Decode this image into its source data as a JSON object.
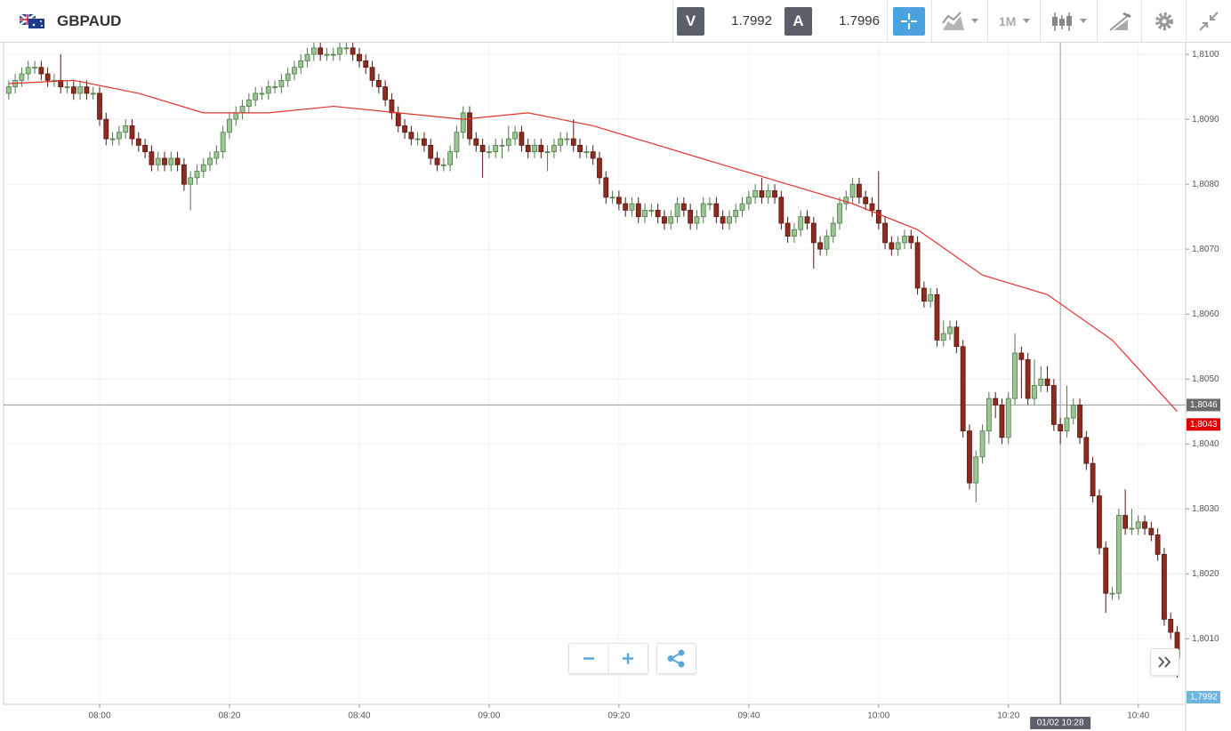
{
  "header": {
    "symbol": "GBPAUD",
    "bid_label": "V",
    "bid": "1.7992",
    "ask_label": "A",
    "ask": "1.7996",
    "timeframe": "1M"
  },
  "chart_data": {
    "type": "candlestick",
    "x": [
      466,
      467,
      468,
      469,
      470,
      471,
      472,
      473,
      474,
      475,
      476,
      477,
      478,
      479,
      480,
      481,
      482,
      483,
      484,
      485,
      486,
      487,
      488,
      489,
      490,
      491,
      492,
      493,
      494,
      495,
      496,
      497,
      498,
      499,
      500,
      501,
      502,
      503,
      504,
      505,
      506,
      507,
      508,
      509,
      510,
      511,
      512,
      513,
      514,
      515,
      516,
      517,
      518,
      519,
      520,
      521,
      522,
      523,
      524,
      525,
      526,
      527,
      528,
      529,
      530,
      531,
      532,
      533,
      534,
      535,
      536,
      537,
      538,
      539,
      540,
      541,
      542,
      543,
      544,
      545,
      546,
      547,
      548,
      549,
      550,
      551,
      552,
      553,
      554,
      555,
      556,
      557,
      558,
      559,
      560,
      561,
      562,
      563,
      564,
      565,
      566,
      567,
      568,
      569,
      570,
      571,
      572,
      573,
      574,
      575,
      576,
      577,
      578,
      579,
      580,
      581,
      582,
      583,
      584,
      585,
      586,
      587,
      588,
      589,
      590,
      591,
      592,
      593,
      594,
      595,
      596,
      597,
      598,
      599,
      600,
      601,
      602,
      603,
      604,
      605,
      606,
      607,
      608,
      609,
      610,
      611,
      612,
      613,
      614,
      615,
      616,
      617,
      618,
      619,
      620,
      621,
      622,
      623,
      624,
      625,
      626,
      627,
      628,
      629,
      630,
      631,
      632,
      633,
      634,
      635,
      636,
      637,
      638,
      639,
      640,
      641,
      642,
      643,
      644,
      645,
      646
    ],
    "open": [
      1.8094,
      1.8095,
      1.8096,
      1.8097,
      1.8098,
      1.8098,
      1.8097,
      1.8096,
      1.8096,
      1.8095,
      1.8095,
      1.8094,
      1.8095,
      1.8094,
      1.8094,
      1.809,
      1.8087,
      1.8087,
      1.8088,
      1.8089,
      1.8087,
      1.8086,
      1.8085,
      1.8083,
      1.8084,
      1.8083,
      1.8084,
      1.8083,
      1.808,
      1.8081,
      1.8082,
      1.8083,
      1.8084,
      1.8085,
      1.8088,
      1.809,
      1.8091,
      1.8092,
      1.8093,
      1.8094,
      1.8094,
      1.8095,
      1.8095,
      1.8096,
      1.8097,
      1.8098,
      1.8099,
      1.81,
      1.8101,
      1.81,
      1.81,
      1.81,
      1.8101,
      1.8101,
      1.81,
      1.8099,
      1.8098,
      1.8096,
      1.8095,
      1.8093,
      1.8091,
      1.8089,
      1.8088,
      1.8087,
      1.8087,
      1.8086,
      1.8084,
      1.8083,
      1.8083,
      1.8085,
      1.8088,
      1.8091,
      1.8087,
      1.8086,
      1.8085,
      1.8085,
      1.8086,
      1.8086,
      1.8087,
      1.8088,
      1.8086,
      1.8085,
      1.8086,
      1.8085,
      1.8085,
      1.8086,
      1.8087,
      1.8087,
      1.8086,
      1.8085,
      1.8085,
      1.8084,
      1.8081,
      1.8078,
      1.8078,
      1.8077,
      1.8076,
      1.8077,
      1.8075,
      1.8076,
      1.8076,
      1.8075,
      1.8074,
      1.8075,
      1.8077,
      1.8076,
      1.8074,
      1.8075,
      1.8077,
      1.8077,
      1.8075,
      1.8074,
      1.8075,
      1.8076,
      1.8077,
      1.8078,
      1.8079,
      1.8078,
      1.8079,
      1.8078,
      1.8074,
      1.8072,
      1.8073,
      1.8075,
      1.8074,
      1.8071,
      1.807,
      1.8072,
      1.8074,
      1.8077,
      1.8078,
      1.808,
      1.8078,
      1.8077,
      1.8076,
      1.8074,
      1.8071,
      1.807,
      1.8071,
      1.8072,
      1.8071,
      1.8064,
      1.8062,
      1.8063,
      1.8056,
      1.8057,
      1.8058,
      1.8055,
      1.8042,
      1.8034,
      1.8038,
      1.8042,
      1.8047,
      1.8046,
      1.8041,
      1.8047,
      1.8054,
      1.8053,
      1.8047,
      1.8049,
      1.805,
      1.8049,
      1.8043,
      1.8042,
      1.8044,
      1.8046,
      1.8041,
      1.8037,
      1.8032,
      1.8024,
      1.8017,
      1.8017,
      1.8029,
      1.8027,
      1.8027,
      1.8028,
      1.8027,
      1.8026,
      1.8023,
      1.8013,
      1.8011
    ],
    "high": [
      1.8096,
      1.8097,
      1.8098,
      1.8099,
      1.8099,
      1.8099,
      1.8098,
      1.8097,
      1.81,
      1.8096,
      1.8096,
      1.8096,
      1.8096,
      1.8095,
      1.8095,
      1.8091,
      1.8088,
      1.8089,
      1.809,
      1.809,
      1.8088,
      1.8087,
      1.8086,
      1.8085,
      1.8085,
      1.8085,
      1.8085,
      1.8084,
      1.8082,
      1.8083,
      1.8084,
      1.8085,
      1.8086,
      1.8089,
      1.8091,
      1.8092,
      1.8093,
      1.8094,
      1.8095,
      1.8095,
      1.8096,
      1.8096,
      1.8097,
      1.8098,
      1.8099,
      1.81,
      1.8101,
      1.8102,
      1.8102,
      1.8101,
      1.8101,
      1.8102,
      1.8102,
      1.8102,
      1.8101,
      1.81,
      1.8099,
      1.8097,
      1.8096,
      1.8094,
      1.8092,
      1.809,
      1.8089,
      1.8088,
      1.8088,
      1.8087,
      1.8085,
      1.8084,
      1.8086,
      1.8089,
      1.8092,
      1.8092,
      1.8088,
      1.8087,
      1.8086,
      1.8087,
      1.8087,
      1.8089,
      1.8089,
      1.8089,
      1.8087,
      1.8087,
      1.8087,
      1.8086,
      1.8087,
      1.8088,
      1.8088,
      1.809,
      1.8087,
      1.8086,
      1.8086,
      1.8085,
      1.8082,
      1.8079,
      1.8079,
      1.8078,
      1.8078,
      1.8078,
      1.8077,
      1.8077,
      1.8077,
      1.8076,
      1.8076,
      1.8078,
      1.8078,
      1.8077,
      1.8076,
      1.8078,
      1.8078,
      1.8078,
      1.8076,
      1.8076,
      1.8077,
      1.8078,
      1.8079,
      1.808,
      1.8081,
      1.808,
      1.808,
      1.8079,
      1.8075,
      1.8074,
      1.8076,
      1.8076,
      1.8075,
      1.8072,
      1.8073,
      1.8075,
      1.8078,
      1.8079,
      1.8081,
      1.8081,
      1.8079,
      1.8078,
      1.8082,
      1.8075,
      1.8072,
      1.8072,
      1.8073,
      1.8073,
      1.8072,
      1.8065,
      1.8064,
      1.8064,
      1.8059,
      1.8059,
      1.8059,
      1.8056,
      1.8043,
      1.8039,
      1.8043,
      1.8048,
      1.8048,
      1.8047,
      1.8048,
      1.8057,
      1.8055,
      1.8054,
      1.8053,
      1.8052,
      1.8052,
      1.805,
      1.8044,
      1.8049,
      1.8047,
      1.8047,
      1.8042,
      1.8038,
      1.8033,
      1.8025,
      1.8018,
      1.803,
      1.8033,
      1.803,
      1.8029,
      1.8029,
      1.8028,
      1.8027,
      1.8024,
      1.8014,
      1.8012
    ],
    "low": [
      1.8093,
      1.8094,
      1.8095,
      1.8096,
      1.8097,
      1.8096,
      1.8095,
      1.8095,
      1.8094,
      1.8094,
      1.8093,
      1.8093,
      1.8093,
      1.8093,
      1.8089,
      1.8086,
      1.8086,
      1.8086,
      1.8087,
      1.8086,
      1.8085,
      1.8084,
      1.8082,
      1.8082,
      1.8082,
      1.8082,
      1.8082,
      1.8079,
      1.8076,
      1.808,
      1.8081,
      1.8082,
      1.8083,
      1.8084,
      1.8087,
      1.8089,
      1.809,
      1.8091,
      1.8092,
      1.8093,
      1.8093,
      1.8094,
      1.8094,
      1.8095,
      1.8096,
      1.8097,
      1.8098,
      1.8099,
      1.8099,
      1.8099,
      1.8099,
      1.8099,
      1.81,
      1.8099,
      1.8098,
      1.8097,
      1.8095,
      1.8094,
      1.8092,
      1.809,
      1.8088,
      1.8087,
      1.8086,
      1.8086,
      1.8085,
      1.8083,
      1.8082,
      1.8082,
      1.8082,
      1.8084,
      1.8087,
      1.8086,
      1.8085,
      1.8081,
      1.8084,
      1.8084,
      1.8084,
      1.8085,
      1.8086,
      1.8085,
      1.8084,
      1.8084,
      1.8084,
      1.8082,
      1.8084,
      1.8085,
      1.8086,
      1.8085,
      1.8084,
      1.8084,
      1.8083,
      1.808,
      1.8077,
      1.8077,
      1.8076,
      1.8075,
      1.8075,
      1.8074,
      1.8074,
      1.8075,
      1.8074,
      1.8073,
      1.8073,
      1.8074,
      1.8075,
      1.8073,
      1.8073,
      1.8074,
      1.8076,
      1.8074,
      1.8073,
      1.8073,
      1.8074,
      1.8075,
      1.8076,
      1.8077,
      1.8077,
      1.8077,
      1.8077,
      1.8073,
      1.8071,
      1.8071,
      1.8072,
      1.8073,
      1.8067,
      1.8069,
      1.8069,
      1.8071,
      1.8073,
      1.8076,
      1.8077,
      1.8077,
      1.8076,
      1.8075,
      1.8073,
      1.807,
      1.8069,
      1.8069,
      1.807,
      1.807,
      1.8063,
      1.8061,
      1.8061,
      1.8055,
      1.8055,
      1.8056,
      1.8054,
      1.8041,
      1.8033,
      1.8031,
      1.8037,
      1.804,
      1.8044,
      1.804,
      1.804,
      1.8046,
      1.8047,
      1.8046,
      1.8046,
      1.8048,
      1.8048,
      1.8042,
      1.804,
      1.8041,
      1.8043,
      1.804,
      1.8036,
      1.8031,
      1.8023,
      1.8014,
      1.8016,
      1.8016,
      1.8026,
      1.8026,
      1.8026,
      1.8026,
      1.8025,
      1.8022,
      1.8012,
      1.801,
      1.8004
    ],
    "close": [
      1.8095,
      1.8096,
      1.8097,
      1.8098,
      1.8098,
      1.8097,
      1.8096,
      1.8096,
      1.8095,
      1.8095,
      1.8094,
      1.8095,
      1.8094,
      1.8094,
      1.809,
      1.8087,
      1.8087,
      1.8088,
      1.8089,
      1.8087,
      1.8086,
      1.8085,
      1.8083,
      1.8084,
      1.8083,
      1.8084,
      1.8083,
      1.808,
      1.8081,
      1.8082,
      1.8083,
      1.8084,
      1.8085,
      1.8088,
      1.809,
      1.8091,
      1.8092,
      1.8093,
      1.8094,
      1.8094,
      1.8095,
      1.8095,
      1.8096,
      1.8097,
      1.8098,
      1.8099,
      1.81,
      1.8101,
      1.81,
      1.81,
      1.81,
      1.8101,
      1.8101,
      1.81,
      1.8099,
      1.8098,
      1.8096,
      1.8095,
      1.8093,
      1.8091,
      1.8089,
      1.8088,
      1.8087,
      1.8087,
      1.8086,
      1.8084,
      1.8083,
      1.8083,
      1.8085,
      1.8088,
      1.8091,
      1.8087,
      1.8086,
      1.8085,
      1.8085,
      1.8086,
      1.8086,
      1.8087,
      1.8088,
      1.8086,
      1.8085,
      1.8086,
      1.8085,
      1.8085,
      1.8086,
      1.8087,
      1.8087,
      1.8086,
      1.8085,
      1.8085,
      1.8084,
      1.8081,
      1.8078,
      1.8078,
      1.8077,
      1.8076,
      1.8077,
      1.8075,
      1.8076,
      1.8076,
      1.8075,
      1.8074,
      1.8075,
      1.8077,
      1.8076,
      1.8074,
      1.8075,
      1.8077,
      1.8077,
      1.8075,
      1.8074,
      1.8075,
      1.8076,
      1.8077,
      1.8078,
      1.8079,
      1.8078,
      1.8079,
      1.8078,
      1.8074,
      1.8072,
      1.8073,
      1.8075,
      1.8074,
      1.8071,
      1.807,
      1.8072,
      1.8074,
      1.8077,
      1.8078,
      1.808,
      1.8078,
      1.8077,
      1.8076,
      1.8074,
      1.8071,
      1.807,
      1.8071,
      1.8072,
      1.8071,
      1.8064,
      1.8062,
      1.8063,
      1.8056,
      1.8057,
      1.8058,
      1.8055,
      1.8042,
      1.8034,
      1.8038,
      1.8042,
      1.8047,
      1.8046,
      1.8041,
      1.8047,
      1.8054,
      1.8053,
      1.8047,
      1.8049,
      1.805,
      1.8049,
      1.8043,
      1.8042,
      1.8044,
      1.8046,
      1.8041,
      1.8037,
      1.8032,
      1.8024,
      1.8017,
      1.8017,
      1.8029,
      1.8027,
      1.8027,
      1.8028,
      1.8027,
      1.8026,
      1.8023,
      1.8013,
      1.8011,
      1.8007
    ],
    "up_color": "#9cc596",
    "down_color": "#8c2b1e",
    "overlay": {
      "type": "line",
      "color": "#e2332b",
      "x": [
        466,
        476,
        486,
        496,
        506,
        516,
        526,
        536,
        546,
        556,
        566,
        576,
        586,
        596,
        606,
        616,
        626,
        636,
        646
      ],
      "values": [
        1.80955,
        1.8096,
        1.8094,
        1.8091,
        1.8091,
        1.8092,
        1.8091,
        1.809,
        1.8091,
        1.8089,
        1.8086,
        1.8083,
        1.808,
        1.8077,
        1.8073,
        1.8066,
        1.8063,
        1.8056,
        1.8045
      ]
    },
    "xlim": [
      465.2,
      647.3
    ],
    "ylim": [
      1.79999,
      1.81018
    ],
    "xticks": [
      {
        "value": 480,
        "label": "08:00"
      },
      {
        "value": 500,
        "label": "08:20"
      },
      {
        "value": 520,
        "label": "08:40"
      },
      {
        "value": 540,
        "label": "09:00"
      },
      {
        "value": 560,
        "label": "09:20"
      },
      {
        "value": 580,
        "label": "09:40"
      },
      {
        "value": 600,
        "label": "10:00"
      },
      {
        "value": 620,
        "label": "10:20"
      },
      {
        "value": 640,
        "label": "10:40"
      }
    ],
    "yticks": [
      {
        "value": 1.801,
        "label": "1,8010"
      },
      {
        "value": 1.802,
        "label": "1,8020"
      },
      {
        "value": 1.803,
        "label": "1,8030"
      },
      {
        "value": 1.804,
        "label": "1,8040"
      },
      {
        "value": 1.805,
        "label": "1,8050"
      },
      {
        "value": 1.806,
        "label": "1,8060"
      },
      {
        "value": 1.807,
        "label": "1,8070"
      },
      {
        "value": 1.808,
        "label": "1,8080"
      },
      {
        "value": 1.809,
        "label": "1,8090"
      },
      {
        "value": 1.81,
        "label": "1,8100"
      }
    ],
    "grid": true,
    "price_labels": [
      {
        "value": 1.8043,
        "label": "1,8043",
        "color": "#e00000"
      },
      {
        "value": 1.7992,
        "label": "1,7992",
        "color": "#6db4e0"
      }
    ],
    "crosshair": {
      "x": {
        "value": 628,
        "label": "01/02 10:28"
      },
      "y": {
        "value": 1.8046,
        "label": "1,8046"
      }
    }
  }
}
